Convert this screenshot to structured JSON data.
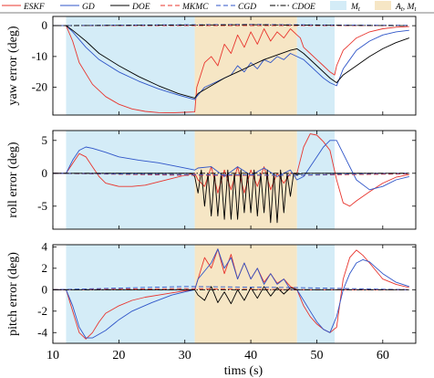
{
  "chart_data": {
    "type": "line",
    "xlabel": "tims (s)",
    "xlim": [
      10,
      65
    ],
    "xticks": [
      10,
      20,
      30,
      40,
      50,
      60
    ],
    "legend": {
      "placement": "top",
      "entries": [
        {
          "label": "ESKF",
          "kind": "line",
          "color": "#e8352e",
          "dash": "solid"
        },
        {
          "label": "GD",
          "kind": "line",
          "color": "#2f55c8",
          "dash": "solid"
        },
        {
          "label": "DOE",
          "kind": "line",
          "color": "#000000",
          "dash": "solid"
        },
        {
          "label": "MKMC",
          "kind": "line",
          "color": "#e8352e",
          "dash": "dashed"
        },
        {
          "label": "CGD",
          "kind": "line",
          "color": "#2f55c8",
          "dash": "dashed"
        },
        {
          "label": "CDOE",
          "kind": "line",
          "color": "#000000",
          "dash": "dashdot"
        },
        {
          "label": "M_t",
          "kind": "patch",
          "color": "#d4ecf7"
        },
        {
          "label": "A_t, M_t",
          "kind": "patch",
          "color": "#f6e6c5"
        }
      ]
    },
    "regions": [
      {
        "label": "M_t",
        "x0": 12,
        "x1": 31.5,
        "color": "#d4ecf7"
      },
      {
        "label": "A_t, M_t",
        "x0": 31.5,
        "x1": 47,
        "color": "#f6e6c5"
      },
      {
        "label": "M_t",
        "x0": 47,
        "x1": 52.7,
        "color": "#d4ecf7"
      }
    ],
    "subplots": [
      {
        "ylabel": "yaw error (deg)",
        "ylim": [
          -29,
          3
        ],
        "yticks": [
          -20,
          -10,
          0
        ],
        "series": [
          {
            "name": "ESKF",
            "x": [
              10,
              12,
              13,
              14,
              16,
              18,
              20,
              22,
              24,
              26,
              28,
              30,
              31.5,
              31.8,
              33,
              34,
              35,
              36,
              37,
              38,
              39,
              40,
              41,
              42,
              43,
              44,
              45,
              46,
              47,
              47.5,
              48,
              49,
              50,
              51,
              52,
              52.7,
              53,
              54,
              56,
              58,
              60,
              62,
              64
            ],
            "y": [
              0,
              0,
              -5,
              -12,
              -19,
              -23,
              -25.5,
              -27,
              -27.8,
              -28.2,
              -28.3,
              -28.1,
              -28,
              -20,
              -12,
              -10,
              -13,
              -6,
              -9,
              -3,
              -7,
              -2,
              -6,
              -1,
              -5,
              -2,
              -4,
              -1,
              -3,
              -4,
              -7,
              -9,
              -11,
              -13,
              -15,
              -16,
              -13,
              -8,
              -4,
              -2,
              -1,
              -0.5,
              -0.3
            ]
          },
          {
            "name": "GD",
            "x": [
              10,
              12,
              13,
              15,
              17,
              20,
              23,
              26,
              29,
              31.5,
              31.8,
              33,
              35,
              37,
              38,
              39,
              40,
              41,
              42,
              43,
              44,
              45,
              46,
              47,
              48,
              49,
              50,
              51,
              52,
              53,
              54,
              56,
              58,
              60,
              62,
              64
            ],
            "y": [
              0,
              0,
              -2,
              -7,
              -11,
              -15,
              -18,
              -20.5,
              -22.5,
              -24,
              -23,
              -20,
              -18,
              -16,
              -13,
              -15,
              -12,
              -14,
              -11,
              -12,
              -10,
              -11,
              -9,
              -10,
              -11,
              -13,
              -15,
              -17,
              -18.5,
              -19.5,
              -14,
              -8,
              -5,
              -3,
              -2,
              -1.5
            ]
          },
          {
            "name": "DOE",
            "x": [
              10,
              12,
              13,
              15,
              17,
              20,
              23,
              26,
              29,
              31.5,
              32,
              34,
              36,
              38,
              40,
              42,
              44,
              46,
              47,
              48,
              50,
              52,
              53,
              54,
              56,
              58,
              60,
              62,
              64
            ],
            "y": [
              0,
              0,
              -1.5,
              -5,
              -9,
              -13,
              -16.5,
              -19.5,
              -22,
              -23.5,
              -22,
              -19.5,
              -17,
              -15,
              -13,
              -11,
              -9.5,
              -8,
              -7.5,
              -9,
              -13,
              -17,
              -18.5,
              -16,
              -13,
              -10,
              -7.5,
              -5.5,
              -4
            ]
          },
          {
            "name": "MKMC",
            "x": [
              10,
              20,
              30,
              40,
              47,
              55,
              64
            ],
            "y": [
              0,
              0,
              0,
              0,
              0,
              0,
              0
            ]
          },
          {
            "name": "CGD",
            "x": [
              10,
              20,
              30,
              40,
              47,
              55,
              64
            ],
            "y": [
              0,
              0.2,
              0.3,
              0.4,
              0.3,
              0.2,
              0.1
            ]
          },
          {
            "name": "CDOE",
            "x": [
              10,
              20,
              30,
              40,
              47,
              55,
              64
            ],
            "y": [
              0,
              0.1,
              0.2,
              0.3,
              0.2,
              0.1,
              0
            ]
          }
        ]
      },
      {
        "ylabel": "roll error (deg)",
        "ylim": [
          -8.5,
          6.5
        ],
        "yticks": [
          -5,
          0,
          5
        ],
        "series": [
          {
            "name": "ESKF",
            "x": [
              10,
              12,
              13,
              14,
              15,
              16,
              17,
              18,
              20,
              22,
              24,
              26,
              28,
              30,
              31.5,
              32,
              33,
              34,
              35,
              36,
              37,
              38,
              39,
              40,
              41,
              42,
              43,
              44,
              45,
              46,
              47,
              48,
              49,
              50,
              51,
              52,
              53,
              54,
              55,
              56,
              58,
              60,
              62,
              64
            ],
            "y": [
              0,
              0,
              1.5,
              3,
              2.5,
              1,
              -0.5,
              -1.5,
              -2,
              -2,
              -1.8,
              -1.3,
              -0.8,
              -0.3,
              0,
              -1,
              -2,
              1,
              -3,
              0.5,
              -2.5,
              1,
              -3,
              0.5,
              -2,
              1,
              -2.5,
              0,
              -1.5,
              0,
              0,
              4,
              6,
              5.8,
              4.8,
              3.5,
              -1,
              -4.5,
              -5,
              -4.2,
              -2.8,
              -1.5,
              -0.6,
              -0.2
            ]
          },
          {
            "name": "GD",
            "x": [
              10,
              12,
              13,
              14,
              15,
              16,
              18,
              20,
              23,
              26,
              29,
              31.5,
              32,
              34,
              36,
              38,
              40,
              42,
              44,
              46,
              47,
              48,
              49,
              50,
              51,
              52,
              53,
              54,
              56,
              58,
              60,
              62,
              64
            ],
            "y": [
              0,
              0,
              2,
              3.5,
              4,
              3.8,
              3.2,
              2.5,
              2,
              1.6,
              1,
              0.5,
              0.8,
              1,
              -0.5,
              1,
              -0.3,
              0.8,
              -0.5,
              0.5,
              -1,
              -0.5,
              1,
              2.5,
              4,
              5,
              5,
              3,
              -1,
              -2.5,
              -2,
              -1,
              -0.5
            ]
          },
          {
            "name": "DOE",
            "x": [
              10,
              31,
              31.5,
              32,
              32.5,
              33,
              33.5,
              34,
              34.5,
              35,
              35.5,
              36,
              36.5,
              37,
              37.5,
              38,
              38.5,
              39,
              39.5,
              40,
              40.5,
              41,
              41.5,
              42,
              42.5,
              43,
              43.5,
              44,
              44.5,
              45,
              45.5,
              46,
              46.5,
              47,
              48,
              50,
              55,
              64
            ],
            "y": [
              0,
              0,
              -0.5,
              -3,
              0.5,
              -5,
              0,
              -6.5,
              0,
              -6.5,
              0,
              -7,
              0.5,
              -7,
              0,
              -7,
              0.5,
              -6,
              0,
              -6,
              0.5,
              -6.5,
              0,
              -6,
              0.5,
              -7.5,
              0,
              -7.5,
              0.5,
              -6,
              0,
              -3.5,
              0,
              -0.2,
              0,
              0,
              0,
              0
            ]
          },
          {
            "name": "MKMC",
            "x": [
              10,
              30,
              47,
              55,
              64
            ],
            "y": [
              0,
              -0.3,
              -0.3,
              -0.2,
              -0.1
            ]
          },
          {
            "name": "CGD",
            "x": [
              10,
              30,
              47,
              55,
              64
            ],
            "y": [
              0,
              -0.2,
              -0.3,
              -0.1,
              0
            ]
          },
          {
            "name": "CDOE",
            "x": [
              10,
              30,
              47,
              55,
              64
            ],
            "y": [
              0,
              0,
              0,
              0,
              0
            ]
          }
        ]
      },
      {
        "ylabel": "pitch error (deg)",
        "ylim": [
          -5,
          4.2
        ],
        "yticks": [
          -4,
          -2,
          0,
          2,
          4
        ],
        "series": [
          {
            "name": "ESKF",
            "x": [
              10,
              12,
              13,
              14,
              15,
              16,
              17,
              18,
              20,
              22,
              24,
              26,
              28,
              30,
              31.5,
              32,
              33,
              34,
              35,
              36,
              37,
              38,
              39,
              40,
              41,
              42,
              43,
              44,
              45,
              46,
              47,
              48,
              49,
              50,
              51,
              52,
              53,
              54,
              55,
              56,
              57,
              58,
              60,
              62,
              64
            ],
            "y": [
              0,
              0,
              -2,
              -4,
              -4.6,
              -4,
              -3,
              -2.2,
              -1.5,
              -1,
              -0.7,
              -0.5,
              -0.3,
              -0.1,
              0,
              1,
              3,
              2,
              3.8,
              1.5,
              3.3,
              1,
              2.5,
              1,
              2,
              0.7,
              1.5,
              0.6,
              1,
              0.3,
              0,
              -1.5,
              -2.5,
              -3.2,
              -3.7,
              -4,
              -3.5,
              1,
              3,
              3.7,
              3.2,
              2.5,
              1,
              0.5,
              0.2
            ]
          },
          {
            "name": "GD",
            "x": [
              10,
              12,
              13,
              14,
              15,
              16,
              18,
              20,
              22,
              25,
              28,
              30,
              31.5,
              32,
              34,
              35,
              36,
              37,
              38,
              39,
              40,
              41,
              42,
              43,
              44,
              45,
              46,
              47,
              48,
              49,
              50,
              51,
              52,
              53,
              54,
              55,
              56,
              57,
              58,
              60,
              62,
              64
            ],
            "y": [
              0,
              0,
              -1.5,
              -3.5,
              -4.5,
              -4.5,
              -3.8,
              -2.8,
              -2,
              -1.2,
              -0.5,
              -0.2,
              0,
              1,
              2.5,
              3.8,
              2,
              3,
              1,
              2.5,
              1,
              2,
              0.5,
              1.5,
              0.5,
              1,
              0,
              0,
              -1,
              -2,
              -3,
              -3.7,
              -4,
              -2.5,
              0,
              1.5,
              2.5,
              2.8,
              2.6,
              1.5,
              0.7,
              0.3
            ]
          },
          {
            "name": "DOE",
            "x": [
              10,
              31.5,
              32,
              33,
              34,
              35,
              36,
              37,
              38,
              39,
              40,
              41,
              42,
              43,
              44,
              45,
              46,
              47,
              48,
              55,
              64
            ],
            "y": [
              0,
              0,
              -0.5,
              -1,
              0.3,
              -1.2,
              -0.2,
              -1.3,
              0,
              -1,
              0.2,
              -0.8,
              0.3,
              -0.6,
              0.2,
              -0.4,
              0.2,
              0,
              0,
              0,
              0
            ]
          },
          {
            "name": "MKMC",
            "x": [
              10,
              30,
              47,
              55,
              64
            ],
            "y": [
              0,
              0.1,
              0,
              0,
              0
            ]
          },
          {
            "name": "CGD",
            "x": [
              10,
              30,
              47,
              55,
              64
            ],
            "y": [
              0,
              0.3,
              0.2,
              0.1,
              0
            ]
          },
          {
            "name": "CDOE",
            "x": [
              10,
              30,
              47,
              55,
              64
            ],
            "y": [
              0,
              0,
              0,
              0,
              0
            ]
          }
        ]
      }
    ]
  }
}
